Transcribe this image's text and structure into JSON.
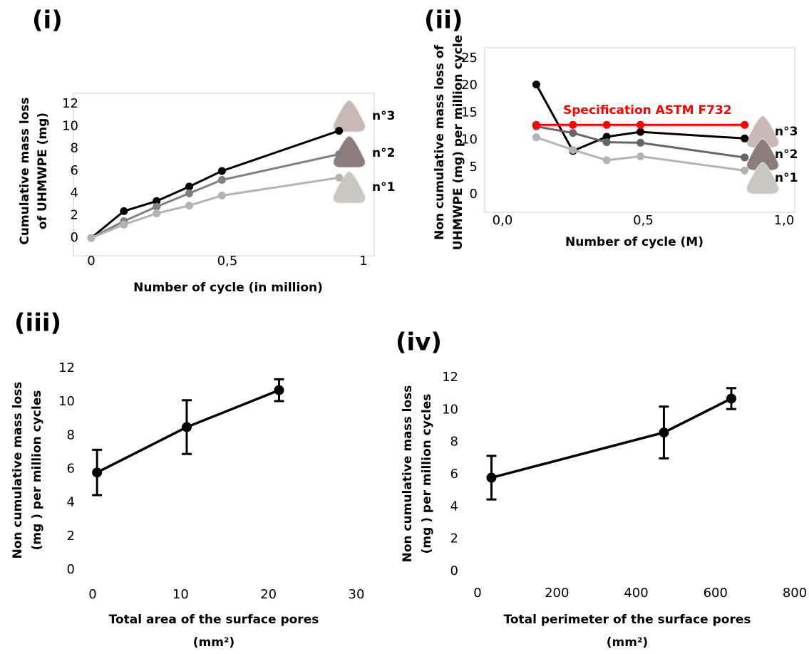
{
  "chart_data": [
    {
      "type": "line",
      "title": "(i)",
      "x_label": "Number of cycle (in million)",
      "y_label": [
        "Cumulative mass loss",
        "of UHMWPE (mg)"
      ],
      "x": [
        0,
        0.12,
        0.24,
        0.36,
        0.48,
        0.91
      ],
      "series": [
        {
          "name": "n°3",
          "color": "#000000",
          "values": [
            0,
            2.4,
            3.3,
            4.6,
            6.0,
            9.6
          ]
        },
        {
          "name": "n°2",
          "color": "#808080",
          "values": [
            0,
            1.5,
            2.8,
            4.0,
            5.2,
            7.5
          ]
        },
        {
          "name": "n°1",
          "color": "#b3b3b3",
          "values": [
            0,
            1.2,
            2.2,
            2.9,
            3.8,
            5.4
          ]
        }
      ],
      "xlim": [
        0,
        1
      ],
      "xticks": [
        0,
        {
          "value": 0.5,
          "label": "0,5"
        },
        1
      ],
      "ylim": [
        0,
        12
      ],
      "yticks": [
        0,
        2,
        4,
        6,
        8,
        10,
        12
      ]
    },
    {
      "type": "line",
      "title": "(ii)",
      "x_label": "Number of cycle (M)",
      "y_label": [
        "Non cumulative mass loss of",
        "UHMWPE  (mg) per million cycle"
      ],
      "x": [
        0.12,
        0.25,
        0.37,
        0.49,
        0.86
      ],
      "series": [
        {
          "name": "n°3",
          "color": "#000000",
          "values": [
            20.2,
            8.0,
            10.6,
            11.5,
            10.3
          ]
        },
        {
          "name": "n°2",
          "color": "#666666",
          "values": [
            12.5,
            11.3,
            9.6,
            9.5,
            6.8
          ]
        },
        {
          "name": "n°1",
          "color": "#b3b3b3",
          "values": [
            10.5,
            8.2,
            6.3,
            7.0,
            4.4
          ]
        },
        {
          "name": "Specification ASTM F732",
          "color": "#ff0000",
          "values": [
            12.8,
            12.8,
            12.8,
            12.8,
            12.8
          ]
        }
      ],
      "xlim": [
        0,
        1
      ],
      "xticks": [
        {
          "value": 0,
          "label": "0,0"
        },
        {
          "value": 0.5,
          "label": "0,5"
        },
        {
          "value": 1,
          "label": "1,0"
        }
      ],
      "ylim": [
        0,
        25
      ],
      "yticks": [
        0,
        5,
        10,
        15,
        20,
        25
      ]
    },
    {
      "type": "errorbar",
      "title": "(iii)",
      "x_label": [
        "Total area of the surface pores",
        "(mm²)"
      ],
      "y_label": [
        "Non cumulative mass loss",
        "(mg ) per million cycles"
      ],
      "x": [
        0.5,
        10.7,
        21.2
      ],
      "series": [
        {
          "color": "#000000",
          "values": [
            5.8,
            8.5,
            10.7
          ],
          "errors": [
            1.35,
            1.6,
            0.65
          ]
        }
      ],
      "xlim": [
        0,
        30
      ],
      "xticks": [
        0,
        10,
        20,
        30
      ],
      "ylim": [
        0,
        12
      ],
      "yticks": [
        0,
        2,
        4,
        6,
        8,
        10,
        12
      ]
    },
    {
      "type": "errorbar",
      "title": "(iv)",
      "x_label": [
        "Total perimeter of the surface pores",
        "(mm²)"
      ],
      "y_label": [
        "Non cumulative mass loss",
        "(mg ) per million cycles"
      ],
      "x": [
        35,
        470,
        640
      ],
      "series": [
        {
          "color": "#000000",
          "values": [
            5.8,
            8.6,
            10.7
          ],
          "errors": [
            1.35,
            1.6,
            0.65
          ]
        }
      ],
      "xlim": [
        0,
        800
      ],
      "xticks": [
        0,
        200,
        400,
        600,
        800
      ],
      "ylim": [
        0,
        12
      ],
      "yticks": [
        0,
        2,
        4,
        6,
        8,
        10,
        12
      ]
    }
  ]
}
